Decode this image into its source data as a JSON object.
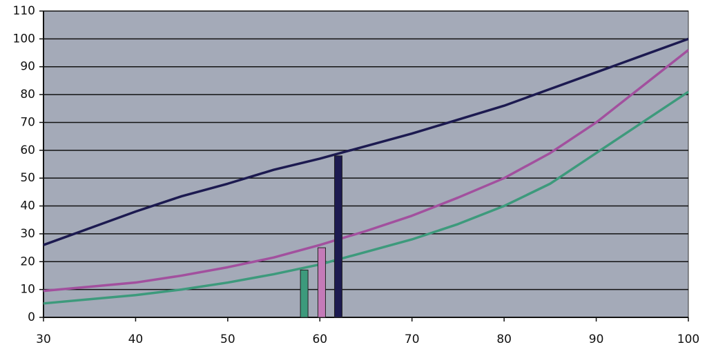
{
  "chart_data": {
    "type": "line",
    "x": [
      30,
      35,
      40,
      45,
      50,
      55,
      60,
      65,
      70,
      75,
      80,
      85,
      90,
      95,
      100
    ],
    "series": [
      {
        "color": "#1c1a50",
        "values": [
          26,
          32,
          38,
          43.5,
          48,
          53,
          57,
          61.5,
          66,
          71,
          76,
          82,
          88,
          94,
          100
        ]
      },
      {
        "color": "#a2509e",
        "values": [
          9.5,
          11,
          12.5,
          15,
          18,
          21.5,
          26,
          31,
          36.5,
          43,
          50,
          59,
          70,
          83,
          96
        ]
      },
      {
        "color": "#3d9a7c",
        "values": [
          5,
          6.5,
          8,
          10,
          12.5,
          15.5,
          19,
          23.5,
          28,
          33.5,
          40,
          48,
          59,
          70,
          81
        ]
      }
    ],
    "bars": [
      {
        "x": 58.3,
        "value": 17,
        "color": "#3d9a7c"
      },
      {
        "x": 60.2,
        "value": 25,
        "color": "#c47ab8"
      },
      {
        "x": 62,
        "value": 58,
        "color": "#1c1a50"
      }
    ],
    "xlim": [
      30,
      100
    ],
    "xticks": [
      30,
      40,
      50,
      60,
      70,
      80,
      90,
      100
    ],
    "ylim": [
      0,
      110
    ],
    "yticks": [
      0,
      10,
      20,
      30,
      40,
      50,
      60,
      70,
      80,
      90,
      100,
      110
    ],
    "grid": true,
    "background": "#a4aab8"
  }
}
